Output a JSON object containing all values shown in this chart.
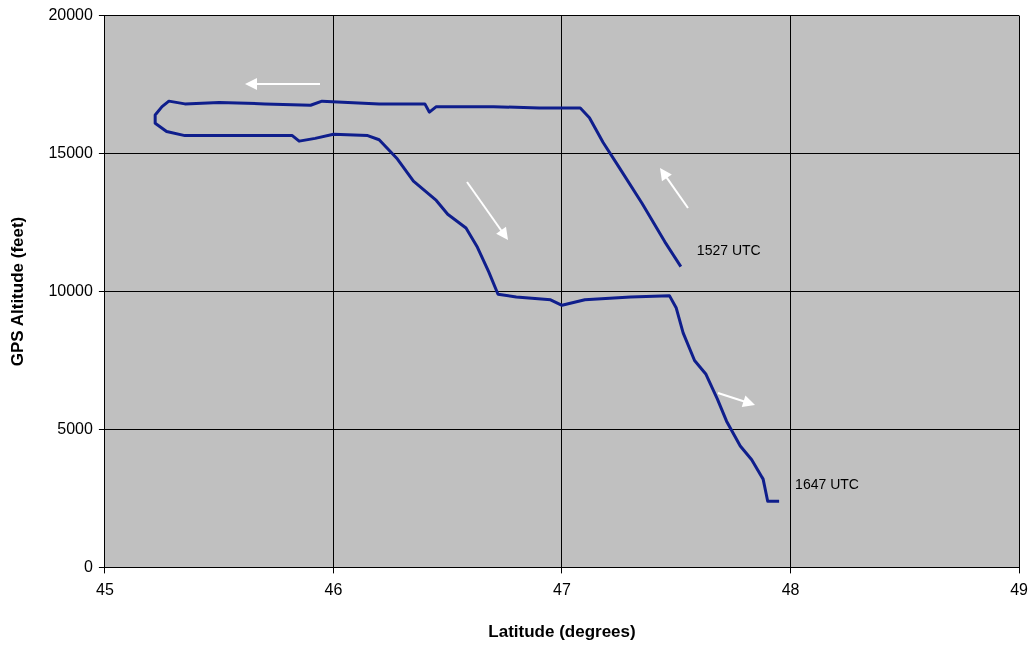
{
  "chart_data": {
    "type": "line",
    "xlabel": "Latitude (degrees)",
    "ylabel": "GPS Altitude (feet)",
    "series": [
      {
        "color": "#0f1e8c",
        "x": [
          47.52,
          47.45,
          47.35,
          47.25,
          47.18,
          47.12,
          47.08,
          46.9,
          46.7,
          46.45,
          46.42,
          46.4,
          46.2,
          45.95,
          45.9,
          45.7,
          45.5,
          45.35,
          45.28,
          45.25,
          45.22,
          45.22,
          45.27,
          45.35,
          45.6,
          45.82,
          45.85,
          45.92,
          46.0,
          46.15,
          46.2,
          46.28,
          46.35,
          46.45,
          46.5,
          46.58,
          46.63,
          46.68,
          46.72,
          46.8,
          46.95,
          47.0,
          47.1,
          47.3,
          47.47,
          47.5,
          47.53,
          47.58,
          47.63,
          47.68,
          47.72,
          47.78,
          47.83,
          47.88,
          47.9,
          47.95
        ],
        "values": [
          10900,
          11800,
          13200,
          14500,
          15400,
          16300,
          16650,
          16650,
          16700,
          16700,
          16500,
          16800,
          16800,
          16900,
          16750,
          16800,
          16850,
          16800,
          16900,
          16700,
          16400,
          16100,
          15800,
          15650,
          15650,
          15650,
          15450,
          15550,
          15700,
          15650,
          15500,
          14800,
          14000,
          13300,
          12800,
          12300,
          11600,
          10700,
          9900,
          9800,
          9700,
          9500,
          9700,
          9800,
          9850,
          9400,
          8500,
          7500,
          7000,
          6100,
          5300,
          4400,
          3900,
          3200,
          2400,
          2400
        ]
      }
    ],
    "xlim": [
      45,
      49
    ],
    "xticks": [
      45,
      46,
      47,
      48,
      49
    ],
    "ylim": [
      0,
      20000
    ],
    "yticks": [
      0,
      5000,
      10000,
      15000,
      20000
    ],
    "grid": true,
    "marker": "none",
    "line_style": "solid",
    "legend": false,
    "annotations": [
      {
        "text": "1527 UTC",
        "x": 47.52,
        "y": 10900
      },
      {
        "text": "1647 UTC",
        "x": 47.95,
        "y": 2400
      }
    ]
  }
}
